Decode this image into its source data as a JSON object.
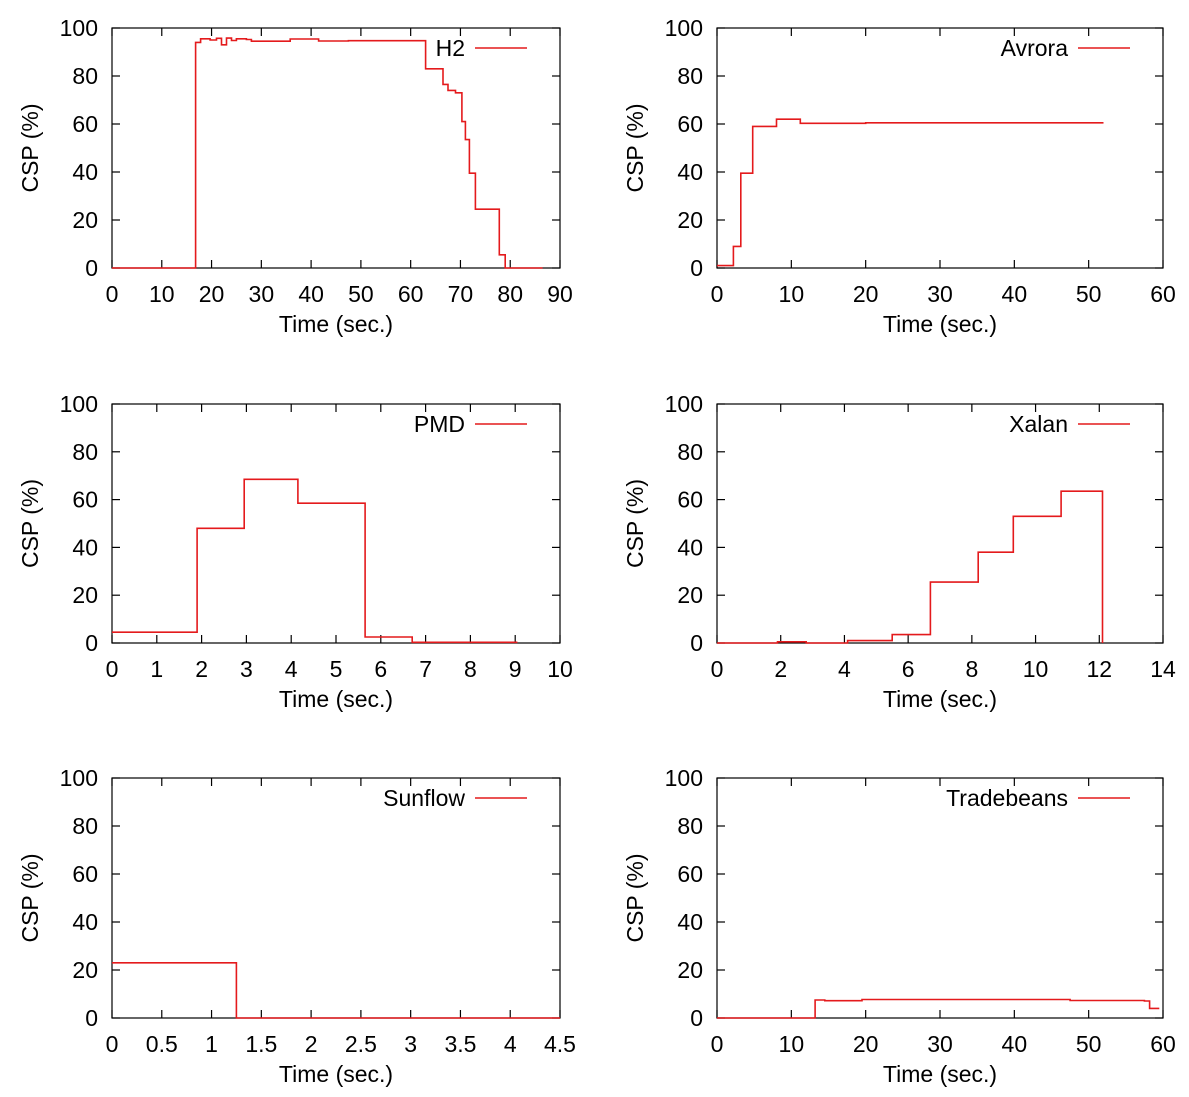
{
  "colors": {
    "series": "#e41a1c",
    "axis": "#000000",
    "background": "#ffffff"
  },
  "chart_data": [
    {
      "type": "line",
      "step": true,
      "title": "",
      "xlabel": "Time (sec.)",
      "ylabel": "CSP (%)",
      "xlim": [
        0,
        90
      ],
      "ylim": [
        0,
        100
      ],
      "xticks": [
        0,
        10,
        20,
        30,
        40,
        50,
        60,
        70,
        80,
        90
      ],
      "xtick_labels": [
        "0",
        "10",
        "20",
        "30",
        "40",
        "50",
        "60",
        "70",
        "80",
        "90"
      ],
      "yticks": [
        0,
        20,
        40,
        60,
        80,
        100
      ],
      "ytick_labels": [
        "0",
        "20",
        "40",
        "60",
        "80",
        "100"
      ],
      "grid": false,
      "legend_position": "top-right",
      "series": [
        {
          "name": "H2",
          "x": [
            0,
            15.8,
            16.8,
            17.8,
            19.7,
            21,
            22,
            23,
            24,
            25,
            27,
            28,
            35.8,
            41.5,
            47.5,
            63,
            66.5,
            67.5,
            69,
            70.3,
            71,
            71.8,
            73,
            77.8,
            79,
            79.8,
            86.5
          ],
          "y": [
            0,
            0,
            94,
            95.5,
            95,
            95.7,
            93,
            95.8,
            94.8,
            95.5,
            95.2,
            94.5,
            95.4,
            94.6,
            94.7,
            83,
            76.5,
            74,
            73,
            61,
            53.5,
            39.5,
            24.5,
            5.5,
            0,
            0,
            0
          ]
        }
      ]
    },
    {
      "type": "line",
      "step": true,
      "title": "",
      "xlabel": "Time (sec.)",
      "ylabel": "CSP (%)",
      "xlim": [
        0,
        60
      ],
      "ylim": [
        0,
        100
      ],
      "xticks": [
        0,
        10,
        20,
        30,
        40,
        50,
        60
      ],
      "xtick_labels": [
        "0",
        "10",
        "20",
        "30",
        "40",
        "50",
        "60"
      ],
      "yticks": [
        0,
        20,
        40,
        60,
        80,
        100
      ],
      "ytick_labels": [
        "0",
        "20",
        "40",
        "60",
        "80",
        "100"
      ],
      "grid": false,
      "legend_position": "top-right",
      "series": [
        {
          "name": "Avrora",
          "x": [
            0,
            2.2,
            3.2,
            4.8,
            8,
            11.2,
            20,
            52
          ],
          "y": [
            1,
            9,
            39.5,
            59,
            62,
            60.3,
            60.5,
            60.5
          ]
        }
      ]
    },
    {
      "type": "line",
      "step": true,
      "title": "",
      "xlabel": "Time (sec.)",
      "ylabel": "CSP (%)",
      "xlim": [
        0,
        10
      ],
      "ylim": [
        0,
        100
      ],
      "xticks": [
        0,
        1,
        2,
        3,
        4,
        5,
        6,
        7,
        8,
        9,
        10
      ],
      "xtick_labels": [
        "0",
        "1",
        "2",
        "3",
        "4",
        "5",
        "6",
        "7",
        "8",
        "9",
        "10"
      ],
      "yticks": [
        0,
        20,
        40,
        60,
        80,
        100
      ],
      "ytick_labels": [
        "0",
        "20",
        "40",
        "60",
        "80",
        "100"
      ],
      "grid": false,
      "legend_position": "top-right",
      "series": [
        {
          "name": "PMD",
          "x": [
            0,
            1.9,
            2.95,
            4.15,
            5.65,
            6.7,
            9.05
          ],
          "y": [
            4.5,
            48,
            68.5,
            58.5,
            2.5,
            0.3,
            0.3
          ]
        }
      ]
    },
    {
      "type": "line",
      "step": true,
      "title": "",
      "xlabel": "Time (sec.)",
      "ylabel": "CSP (%)",
      "xlim": [
        0,
        14
      ],
      "ylim": [
        0,
        100
      ],
      "xticks": [
        0,
        2,
        4,
        6,
        8,
        10,
        12,
        14
      ],
      "xtick_labels": [
        "0",
        "2",
        "4",
        "6",
        "8",
        "10",
        "12",
        "14"
      ],
      "yticks": [
        0,
        20,
        40,
        60,
        80,
        100
      ],
      "ytick_labels": [
        "0",
        "20",
        "40",
        "60",
        "80",
        "100"
      ],
      "grid": false,
      "legend_position": "top-right",
      "series": [
        {
          "name": "Xalan",
          "x": [
            0,
            1.9,
            2.8,
            4.1,
            5.5,
            6.7,
            8.2,
            9.3,
            10.8,
            12.1
          ],
          "y": [
            0,
            0.5,
            0,
            1,
            3.5,
            25.5,
            38,
            53,
            63.5,
            0
          ]
        }
      ]
    },
    {
      "type": "line",
      "step": true,
      "title": "",
      "xlabel": "Time (sec.)",
      "ylabel": "CSP (%)",
      "xlim": [
        0,
        4.5
      ],
      "ylim": [
        0,
        100
      ],
      "xticks": [
        0,
        0.5,
        1,
        1.5,
        2,
        2.5,
        3,
        3.5,
        4,
        4.5
      ],
      "xtick_labels": [
        "0",
        "0.5",
        "1",
        "1.5",
        "2",
        "2.5",
        "3",
        "3.5",
        "4",
        "4.5"
      ],
      "yticks": [
        0,
        20,
        40,
        60,
        80,
        100
      ],
      "ytick_labels": [
        "0",
        "20",
        "40",
        "60",
        "80",
        "100"
      ],
      "grid": false,
      "legend_position": "top-right",
      "series": [
        {
          "name": "Sunflow",
          "x": [
            0,
            1.25,
            4.5
          ],
          "y": [
            23,
            0,
            0
          ]
        }
      ]
    },
    {
      "type": "line",
      "step": true,
      "title": "",
      "xlabel": "Time (sec.)",
      "ylabel": "CSP (%)",
      "xlim": [
        0,
        60
      ],
      "ylim": [
        0,
        100
      ],
      "xticks": [
        0,
        10,
        20,
        30,
        40,
        50,
        60
      ],
      "xtick_labels": [
        "0",
        "10",
        "20",
        "30",
        "40",
        "50",
        "60"
      ],
      "yticks": [
        0,
        20,
        40,
        60,
        80,
        100
      ],
      "ytick_labels": [
        "0",
        "20",
        "40",
        "60",
        "80",
        "100"
      ],
      "grid": false,
      "legend_position": "top-right",
      "series": [
        {
          "name": "Tradebeans",
          "x": [
            0,
            13.2,
            14.5,
            19.5,
            47.5,
            57.5,
            58.2,
            59.5
          ],
          "y": [
            0,
            7.5,
            7.2,
            7.7,
            7.3,
            7.1,
            4,
            4
          ]
        }
      ]
    }
  ]
}
